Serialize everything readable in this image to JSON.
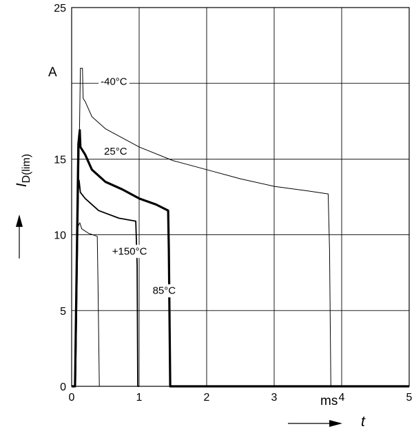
{
  "chart_data": {
    "type": "line",
    "xlim": [
      0,
      5
    ],
    "ylim": [
      0,
      25
    ],
    "x_ticks": [
      "0",
      "1",
      "2",
      "3",
      "4",
      "5"
    ],
    "y_ticks": [
      "0",
      "5",
      "10",
      "15",
      "25"
    ],
    "x_unit": "ms",
    "y_unit": "A",
    "xlabel": "t",
    "ylabel_symbol": "I",
    "ylabel_subscript": "D(lim)",
    "grid": true,
    "series": [
      {
        "name": "-40°C",
        "stroke_weight": "thin",
        "points": [
          [
            0.0,
            0.0
          ],
          [
            0.06,
            0.0
          ],
          [
            0.1,
            12.0
          ],
          [
            0.13,
            21.0
          ],
          [
            0.16,
            21.0
          ],
          [
            0.17,
            19.0
          ],
          [
            0.2,
            18.8
          ],
          [
            0.3,
            17.8
          ],
          [
            0.5,
            17.0
          ],
          [
            1.0,
            15.8
          ],
          [
            1.5,
            14.9
          ],
          [
            2.0,
            14.3
          ],
          [
            2.5,
            13.7
          ],
          [
            3.0,
            13.2
          ],
          [
            3.5,
            12.9
          ],
          [
            3.8,
            12.7
          ],
          [
            3.82,
            9.0
          ],
          [
            3.84,
            0.0
          ],
          [
            5.0,
            0.0
          ]
        ]
      },
      {
        "name": "25°C",
        "stroke_weight": "thick",
        "points": [
          [
            0.0,
            0.0
          ],
          [
            0.05,
            0.0
          ],
          [
            0.1,
            16.0
          ],
          [
            0.12,
            16.9
          ],
          [
            0.13,
            15.8
          ],
          [
            0.2,
            15.3
          ],
          [
            0.3,
            14.3
          ],
          [
            0.5,
            13.5
          ],
          [
            0.75,
            13.0
          ],
          [
            1.0,
            12.4
          ],
          [
            1.25,
            12.0
          ],
          [
            1.43,
            11.6
          ],
          [
            1.44,
            9.0
          ],
          [
            1.46,
            0.0
          ],
          [
            5.0,
            0.0
          ]
        ]
      },
      {
        "name": "85°C",
        "stroke_weight": "medium",
        "points": [
          [
            0.0,
            0.0
          ],
          [
            0.05,
            0.0
          ],
          [
            0.09,
            12.5
          ],
          [
            0.11,
            13.6
          ],
          [
            0.13,
            12.8
          ],
          [
            0.2,
            12.4
          ],
          [
            0.4,
            11.6
          ],
          [
            0.7,
            11.1
          ],
          [
            0.95,
            10.9
          ],
          [
            0.97,
            8.0
          ],
          [
            0.98,
            0.0
          ],
          [
            1.0,
            0.0
          ]
        ]
      },
      {
        "name": "+150°C",
        "stroke_weight": "thin",
        "points": [
          [
            0.0,
            0.0
          ],
          [
            0.06,
            0.0
          ],
          [
            0.09,
            10.5
          ],
          [
            0.12,
            10.8
          ],
          [
            0.15,
            10.4
          ],
          [
            0.25,
            10.1
          ],
          [
            0.38,
            9.9
          ],
          [
            0.39,
            7.0
          ],
          [
            0.41,
            0.0
          ],
          [
            0.45,
            0.0
          ]
        ]
      }
    ],
    "annotations": [
      {
        "text": "-40°C",
        "x": 0.43,
        "y": 19.9
      },
      {
        "text": "25°C",
        "x": 0.48,
        "y": 15.3
      },
      {
        "text": "+150°C",
        "x": 0.6,
        "y": 8.7
      },
      {
        "text": "85°C",
        "x": 1.2,
        "y": 6.1
      }
    ],
    "colors": {
      "line": "#000000",
      "grid": "#000000",
      "background": "#ffffff"
    }
  }
}
